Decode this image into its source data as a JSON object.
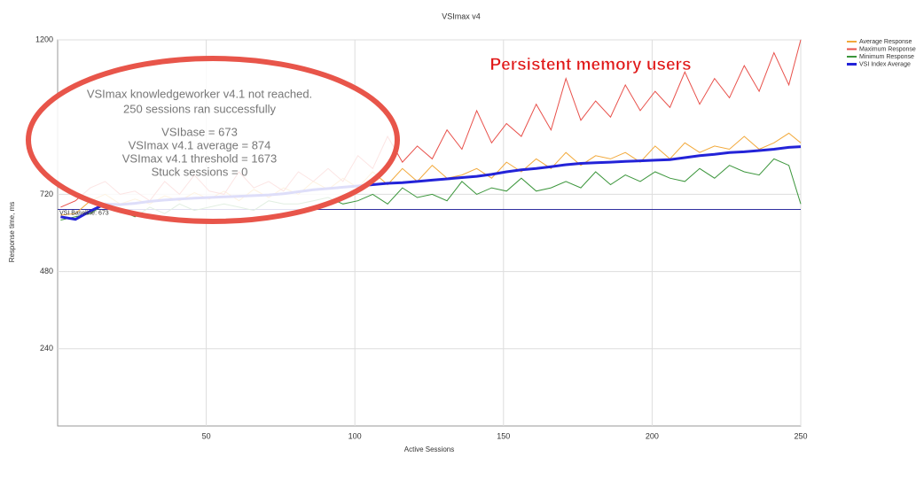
{
  "chart_data": {
    "type": "line",
    "title": "VSImax v4",
    "x_label": "Active Sessions",
    "y_label": "Response time, ms",
    "x": [
      1,
      6,
      11,
      16,
      21,
      26,
      31,
      36,
      41,
      46,
      51,
      56,
      61,
      66,
      71,
      76,
      81,
      86,
      91,
      96,
      101,
      106,
      111,
      116,
      121,
      126,
      131,
      136,
      141,
      146,
      151,
      156,
      161,
      166,
      171,
      176,
      181,
      186,
      191,
      196,
      201,
      206,
      211,
      216,
      221,
      226,
      231,
      236,
      241,
      246,
      250
    ],
    "series": [
      {
        "name": "Average Response",
        "color": "#f2a93b",
        "values": [
          655,
          660,
          700,
          720,
          690,
          705,
          690,
          715,
          700,
          725,
          705,
          730,
          700,
          735,
          710,
          740,
          720,
          760,
          735,
          770,
          740,
          790,
          750,
          800,
          760,
          810,
          770,
          780,
          800,
          770,
          820,
          790,
          830,
          800,
          850,
          810,
          840,
          830,
          850,
          820,
          870,
          830,
          880,
          850,
          870,
          860,
          900,
          860,
          880,
          910,
          880
        ]
      },
      {
        "name": "Maximum Response",
        "color": "#e8504a",
        "values": [
          680,
          700,
          740,
          760,
          720,
          730,
          700,
          760,
          720,
          780,
          730,
          720,
          790,
          740,
          760,
          730,
          790,
          760,
          800,
          760,
          840,
          800,
          900,
          820,
          870,
          830,
          920,
          860,
          980,
          880,
          940,
          900,
          1000,
          920,
          1080,
          950,
          1010,
          960,
          1060,
          980,
          1040,
          990,
          1100,
          1000,
          1080,
          1020,
          1120,
          1040,
          1160,
          1060,
          1200
        ]
      },
      {
        "name": "Minimum Response",
        "color": "#3c963c",
        "values": [
          640,
          650,
          660,
          690,
          670,
          650,
          680,
          660,
          690,
          670,
          680,
          690,
          680,
          670,
          700,
          690,
          690,
          700,
          710,
          690,
          700,
          720,
          690,
          740,
          710,
          720,
          700,
          760,
          720,
          740,
          730,
          770,
          730,
          740,
          760,
          740,
          790,
          750,
          780,
          760,
          790,
          770,
          760,
          800,
          770,
          810,
          790,
          780,
          830,
          810,
          690
        ]
      },
      {
        "name": "VSI Index Average",
        "color": "#2323d8",
        "values": [
          650,
          642,
          668,
          690,
          688,
          692,
          698,
          702,
          705,
          708,
          710,
          712,
          714,
          716,
          718,
          722,
          728,
          734,
          738,
          742,
          746,
          750,
          754,
          756,
          760,
          764,
          768,
          772,
          776,
          782,
          790,
          796,
          800,
          806,
          812,
          816,
          818,
          820,
          822,
          824,
          826,
          828,
          834,
          840,
          844,
          850,
          852,
          856,
          860,
          866,
          868
        ]
      }
    ],
    "baseline": {
      "value": 673,
      "label": "VSI Baseline: 673"
    },
    "xlim": [
      0,
      250
    ],
    "xticks": [
      50,
      100,
      150,
      200,
      250
    ],
    "ylim": [
      0,
      1200
    ],
    "yticks": [
      240,
      480,
      720,
      1200
    ],
    "grid": true,
    "annotation": "Persistent memory users",
    "summary": [
      "VSImax knowledgeworker v4.1 not reached.",
      "250 sessions ran successfully",
      "VSIbase = 673",
      "VSImax v4.1 average = 874",
      "VSImax v4.1 threshold = 1673",
      "Stuck sessions = 0"
    ]
  }
}
